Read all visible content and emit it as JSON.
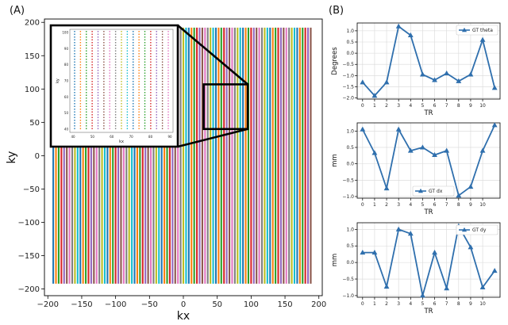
{
  "panels": {
    "a_label": "(A)",
    "b_label": "(B)"
  },
  "colors": {
    "line": [
      "#1f77b4",
      "#ff7f0e",
      "#2ca02c",
      "#d62728",
      "#9467bd",
      "#8c564b",
      "#e377c2",
      "#7f7f7f",
      "#bcbd22",
      "#17becf"
    ],
    "motion": "#2f6fad"
  },
  "chart_data": [
    {
      "type": "scatter",
      "xlabel": "kx",
      "ylabel": "ky",
      "xlim": [
        -205,
        205
      ],
      "ylim": [
        -210,
        205
      ],
      "x_ticks": [
        -200,
        -150,
        -100,
        -50,
        0,
        50,
        100,
        150,
        200
      ],
      "y_ticks": [
        -200,
        -150,
        -100,
        -50,
        0,
        50,
        100,
        150,
        200
      ],
      "x_tick_labels": [
        "−200",
        "−150",
        "−100",
        "−50",
        "0",
        "50",
        "100",
        "150",
        "200"
      ],
      "y_tick_labels": [
        "−200",
        "−150",
        "−100",
        "−50",
        "0",
        "50",
        "100",
        "150",
        "200"
      ],
      "lines": {
        "x_start": -192,
        "x_step": 4,
        "count": 96,
        "y_min": -192,
        "y_max": 192
      },
      "zoom_box": {
        "x": [
          30,
          95
        ],
        "y": [
          40,
          107
        ]
      },
      "inset": {
        "xlabel": "kx",
        "ylabel": "ky",
        "x_tick_labels": [
          "40",
          "50",
          "60",
          "70",
          "80",
          "90"
        ],
        "y_tick_labels": [
          "100",
          "90",
          "80",
          "70",
          "60",
          "50",
          "40"
        ],
        "columns": 17
      }
    },
    {
      "type": "line",
      "xlabel": "TR",
      "ylabel": "Degrees",
      "legend": "GT theta",
      "legend_position": "top-right",
      "x": [
        0,
        1,
        2,
        3,
        4,
        5,
        6,
        7,
        8,
        9,
        10,
        11
      ],
      "x_tick_labels": [
        "0",
        "1",
        "2",
        "3",
        "4",
        "5",
        "6",
        "7",
        "8",
        "9",
        "10"
      ],
      "values": [
        -1.3,
        -1.9,
        -1.3,
        1.2,
        0.8,
        -0.95,
        -1.2,
        -0.9,
        -1.25,
        -0.95,
        0.6,
        -1.55
      ],
      "ylim": [
        -2.05,
        1.35
      ],
      "y_ticks": [
        -2.0,
        -1.5,
        -1.0,
        -0.5,
        0.0,
        0.5,
        1.0
      ],
      "y_tick_labels": [
        "−2.0",
        "−1.5",
        "−1.0",
        "−0.5",
        "0.0",
        "0.5",
        "1.0"
      ],
      "grid": true
    },
    {
      "type": "line",
      "xlabel": "TR",
      "ylabel": "mm",
      "legend": "GT dx",
      "legend_position": "bottom-center",
      "x": [
        0,
        1,
        2,
        3,
        4,
        5,
        6,
        7,
        8,
        9,
        10,
        11
      ],
      "x_tick_labels": [
        "0",
        "1",
        "2",
        "3",
        "4",
        "5",
        "6",
        "7",
        "8",
        "9",
        "10"
      ],
      "values": [
        1.05,
        0.33,
        -0.75,
        1.05,
        0.4,
        0.5,
        0.27,
        0.4,
        -0.97,
        -0.7,
        0.4,
        1.18
      ],
      "ylim": [
        -1.05,
        1.25
      ],
      "y_ticks": [
        -1.0,
        -0.5,
        0.0,
        0.5,
        1.0
      ],
      "y_tick_labels": [
        "−1.0",
        "−0.5",
        "0.0",
        "0.5",
        "1.0"
      ],
      "grid": true
    },
    {
      "type": "line",
      "xlabel": "TR",
      "ylabel": "mm",
      "legend": "GT dy",
      "legend_position": "top-right",
      "x": [
        0,
        1,
        2,
        3,
        4,
        5,
        6,
        7,
        8,
        9,
        10,
        11
      ],
      "x_tick_labels": [
        "0",
        "1",
        "2",
        "3",
        "4",
        "5",
        "6",
        "7",
        "8",
        "9",
        "10"
      ],
      "values": [
        0.3,
        0.3,
        -0.73,
        1.0,
        0.87,
        -1.0,
        0.3,
        -0.78,
        1.1,
        0.46,
        -0.75,
        -0.25
      ],
      "ylim": [
        -1.05,
        1.2
      ],
      "y_ticks": [
        -1.0,
        -0.5,
        0.0,
        0.5,
        1.0
      ],
      "y_tick_labels": [
        "−1.0",
        "−0.5",
        "0.0",
        "0.5",
        "1.0"
      ],
      "grid": true
    }
  ]
}
